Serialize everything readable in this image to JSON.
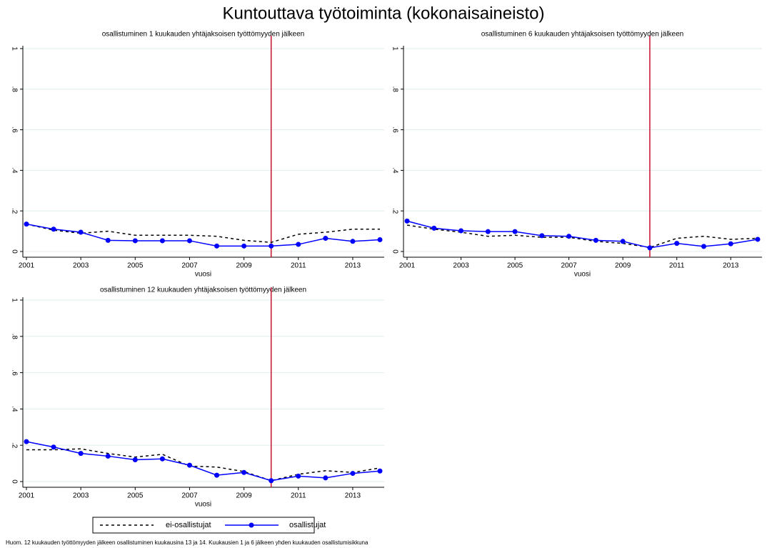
{
  "title": "Kuntouttava työtoiminta (kokonaisaineisto)",
  "note": "Huom. 12 kuukauden työttömyyden jälkeen osallistuminen kuukausina 13 ja 14. Kuukausien 1 ja 6 jälkeen yhden kuukauden osallistumisikkuna",
  "chart_data": [
    {
      "type": "line",
      "title": "osallistuminen 1 kuukauden yhtäjaksoisen työttömyyden jälkeen",
      "xlabel": "vuosi",
      "x": [
        2001,
        2002,
        2003,
        2004,
        2005,
        2006,
        2007,
        2008,
        2009,
        2010,
        2011,
        2012,
        2013,
        2014
      ],
      "xlim": [
        2001,
        2014
      ],
      "xticks": [
        2001,
        2003,
        2005,
        2007,
        2009,
        2011,
        2013
      ],
      "ylim": [
        0,
        1
      ],
      "yticks": [
        0,
        {
          "value": 0.2,
          "label": ".2"
        },
        {
          "value": 0.4,
          "label": ".4"
        },
        {
          "value": 0.6,
          "label": ".6"
        },
        {
          "value": 0.8,
          "label": ".8"
        },
        1
      ],
      "grid": true,
      "vline": 2010,
      "vline_color": "#c8102e",
      "series": [
        {
          "name": "ei-osallistujat",
          "color": "#000000",
          "style": "dashed",
          "marker": false,
          "values": [
            0.135,
            0.105,
            0.09,
            0.1,
            0.08,
            0.08,
            0.08,
            0.075,
            0.055,
            0.045,
            0.085,
            0.095,
            0.11,
            0.11
          ]
        },
        {
          "name": "osallistujat",
          "color": "#0000ff",
          "style": "solid",
          "marker": true,
          "values": [
            0.135,
            0.11,
            0.095,
            0.055,
            0.053,
            0.053,
            0.053,
            0.027,
            0.027,
            0.027,
            0.035,
            0.065,
            0.05,
            0.058
          ]
        }
      ]
    },
    {
      "type": "line",
      "title": "osallistuminen 6 kuukauden yhtäjaksoisen työttömyyden jälkeen",
      "xlabel": "vuosi",
      "x": [
        2001,
        2002,
        2003,
        2004,
        2005,
        2006,
        2007,
        2008,
        2009,
        2010,
        2011,
        2012,
        2013,
        2014
      ],
      "xlim": [
        2001,
        2014
      ],
      "xticks": [
        2001,
        2003,
        2005,
        2007,
        2009,
        2011,
        2013
      ],
      "ylim": [
        0,
        1
      ],
      "yticks": [
        0,
        {
          "value": 0.2,
          "label": ".2"
        },
        {
          "value": 0.4,
          "label": ".4"
        },
        {
          "value": 0.6,
          "label": ".6"
        },
        {
          "value": 0.8,
          "label": ".8"
        },
        1
      ],
      "grid": true,
      "vline": 2010,
      "vline_color": "#c8102e",
      "series": [
        {
          "name": "ei-osallistujat",
          "color": "#000000",
          "style": "dashed",
          "marker": false,
          "values": [
            0.13,
            0.11,
            0.095,
            0.075,
            0.08,
            0.07,
            0.07,
            0.05,
            0.04,
            0.02,
            0.065,
            0.075,
            0.06,
            0.065
          ]
        },
        {
          "name": "osallistujat",
          "color": "#0000ff",
          "style": "solid",
          "marker": true,
          "values": [
            0.15,
            0.115,
            0.102,
            0.098,
            0.098,
            0.078,
            0.075,
            0.055,
            0.05,
            0.018,
            0.04,
            0.025,
            0.038,
            0.06
          ]
        }
      ]
    },
    {
      "type": "line",
      "title": "osallistuminen 12 kuukauden yhtäjaksoisen työttömyyden jälkeen",
      "xlabel": "vuosi",
      "x": [
        2001,
        2002,
        2003,
        2004,
        2005,
        2006,
        2007,
        2008,
        2009,
        2010,
        2011,
        2012,
        2013,
        2014
      ],
      "xlim": [
        2001,
        2014
      ],
      "xticks": [
        2001,
        2003,
        2005,
        2007,
        2009,
        2011,
        2013
      ],
      "ylim": [
        0,
        1
      ],
      "yticks": [
        0,
        {
          "value": 0.2,
          "label": ".2"
        },
        {
          "value": 0.4,
          "label": ".4"
        },
        {
          "value": 0.6,
          "label": ".6"
        },
        {
          "value": 0.8,
          "label": ".8"
        },
        1
      ],
      "grid": true,
      "vline": 2010,
      "vline_color": "#c8102e",
      "series": [
        {
          "name": "ei-osallistujat",
          "color": "#000000",
          "style": "dashed",
          "marker": false,
          "values": [
            0.175,
            0.175,
            0.18,
            0.155,
            0.135,
            0.15,
            0.085,
            0.08,
            0.055,
            0.005,
            0.04,
            0.06,
            0.05,
            0.075
          ]
        },
        {
          "name": "osallistujat",
          "color": "#0000ff",
          "style": "solid",
          "marker": true,
          "values": [
            0.22,
            0.19,
            0.155,
            0.14,
            0.12,
            0.125,
            0.09,
            0.035,
            0.05,
            0.005,
            0.03,
            0.02,
            0.045,
            0.058
          ]
        }
      ]
    }
  ]
}
